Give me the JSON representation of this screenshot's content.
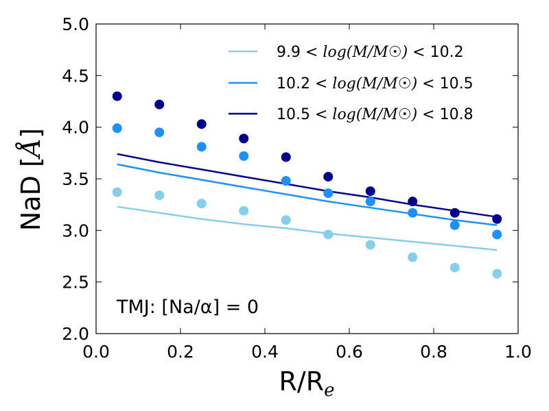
{
  "chart_data": {
    "type": "scatter",
    "xlabel": "R/R",
    "xlabel_sub": "e",
    "ylabel": "NaD [",
    "ylabel_symbol": "Å",
    "ylabel_close": "]",
    "xlim": [
      0.0,
      1.0
    ],
    "ylim": [
      2.0,
      5.0
    ],
    "xticks": [
      "0.0",
      "0.2",
      "0.4",
      "0.6",
      "0.8",
      "1.0"
    ],
    "yticks": [
      "2.0",
      "2.5",
      "3.0",
      "3.5",
      "4.0",
      "4.5",
      "5.0"
    ],
    "grid": false,
    "legend_position": "top-right",
    "annotation": "TMJ: [Na/α] = 0",
    "x": [
      0.05,
      0.15,
      0.25,
      0.35,
      0.45,
      0.55,
      0.65,
      0.75,
      0.85,
      0.95
    ],
    "series": [
      {
        "name": "9.9 < log(M/M☉) < 10.2",
        "label_left": "9.9",
        "label_right": "10.2",
        "color": "#87ceeb",
        "points": [
          3.37,
          3.34,
          3.26,
          3.19,
          3.1,
          2.96,
          2.86,
          2.74,
          2.64,
          2.58
        ],
        "model": [
          3.23,
          3.17,
          3.11,
          3.06,
          3.02,
          2.97,
          2.93,
          2.89,
          2.85,
          2.81
        ]
      },
      {
        "name": "10.2 < log(M/M☉) < 10.5",
        "label_left": "10.2",
        "label_right": "10.5",
        "color": "#1e90ff",
        "points": [
          3.99,
          3.95,
          3.81,
          3.72,
          3.48,
          3.36,
          3.28,
          3.17,
          3.05,
          2.96
        ],
        "model": [
          3.64,
          3.56,
          3.49,
          3.42,
          3.35,
          3.28,
          3.22,
          3.16,
          3.1,
          3.05
        ]
      },
      {
        "name": "10.5 < log(M/M☉) < 10.8",
        "label_left": "10.5",
        "label_right": "10.8",
        "color": "#00008b",
        "points": [
          4.3,
          4.22,
          4.03,
          3.89,
          3.71,
          3.52,
          3.38,
          3.28,
          3.17,
          3.11
        ],
        "model": [
          3.74,
          3.66,
          3.59,
          3.52,
          3.45,
          3.38,
          3.32,
          3.25,
          3.19,
          3.13
        ]
      }
    ]
  }
}
